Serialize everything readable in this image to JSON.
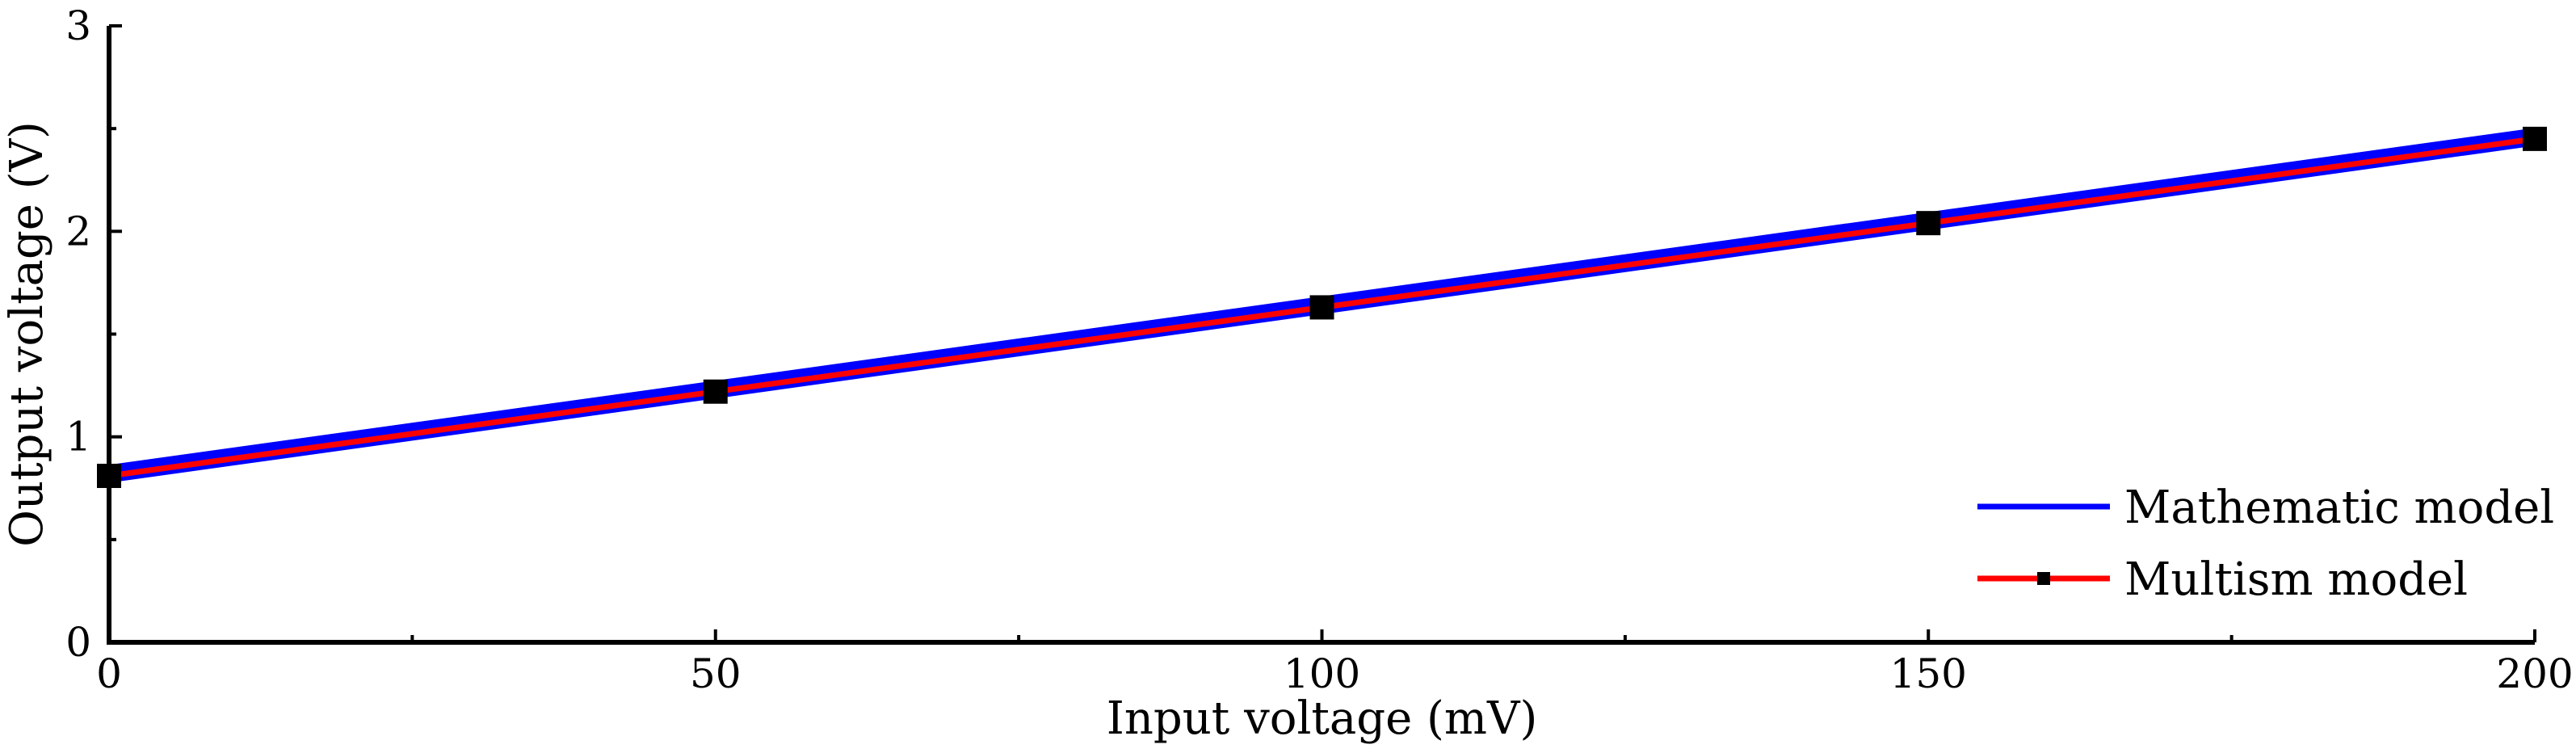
{
  "chart_data": {
    "type": "line",
    "title": "",
    "xlabel": "Input voltage (mV)",
    "ylabel": "Output voltage (V)",
    "xlim": [
      0,
      200
    ],
    "ylim": [
      0,
      3
    ],
    "xticks": [
      0,
      50,
      100,
      150,
      200
    ],
    "xtick_labels": [
      "0",
      "50",
      "100",
      "150",
      "200"
    ],
    "xminor_ticks": [
      25,
      75,
      125,
      175
    ],
    "yticks": [
      0,
      1,
      2,
      3
    ],
    "ytick_labels": [
      "0",
      "1",
      "2",
      "3"
    ],
    "yminor_ticks": [
      0.5,
      1.5,
      2.5
    ],
    "grid": false,
    "legend_position": "bottom-right",
    "series": [
      {
        "name": "Mathematic model",
        "color": "#0000ff",
        "marker": "none",
        "x": [
          0,
          200
        ],
        "y": [
          0.82,
          2.46
        ]
      },
      {
        "name": "Multism model",
        "color": "#ff0000",
        "marker": "square",
        "marker_color": "#000000",
        "x": [
          0,
          50,
          100,
          150,
          200
        ],
        "y": [
          0.81,
          1.22,
          1.63,
          2.04,
          2.45
        ]
      }
    ]
  }
}
